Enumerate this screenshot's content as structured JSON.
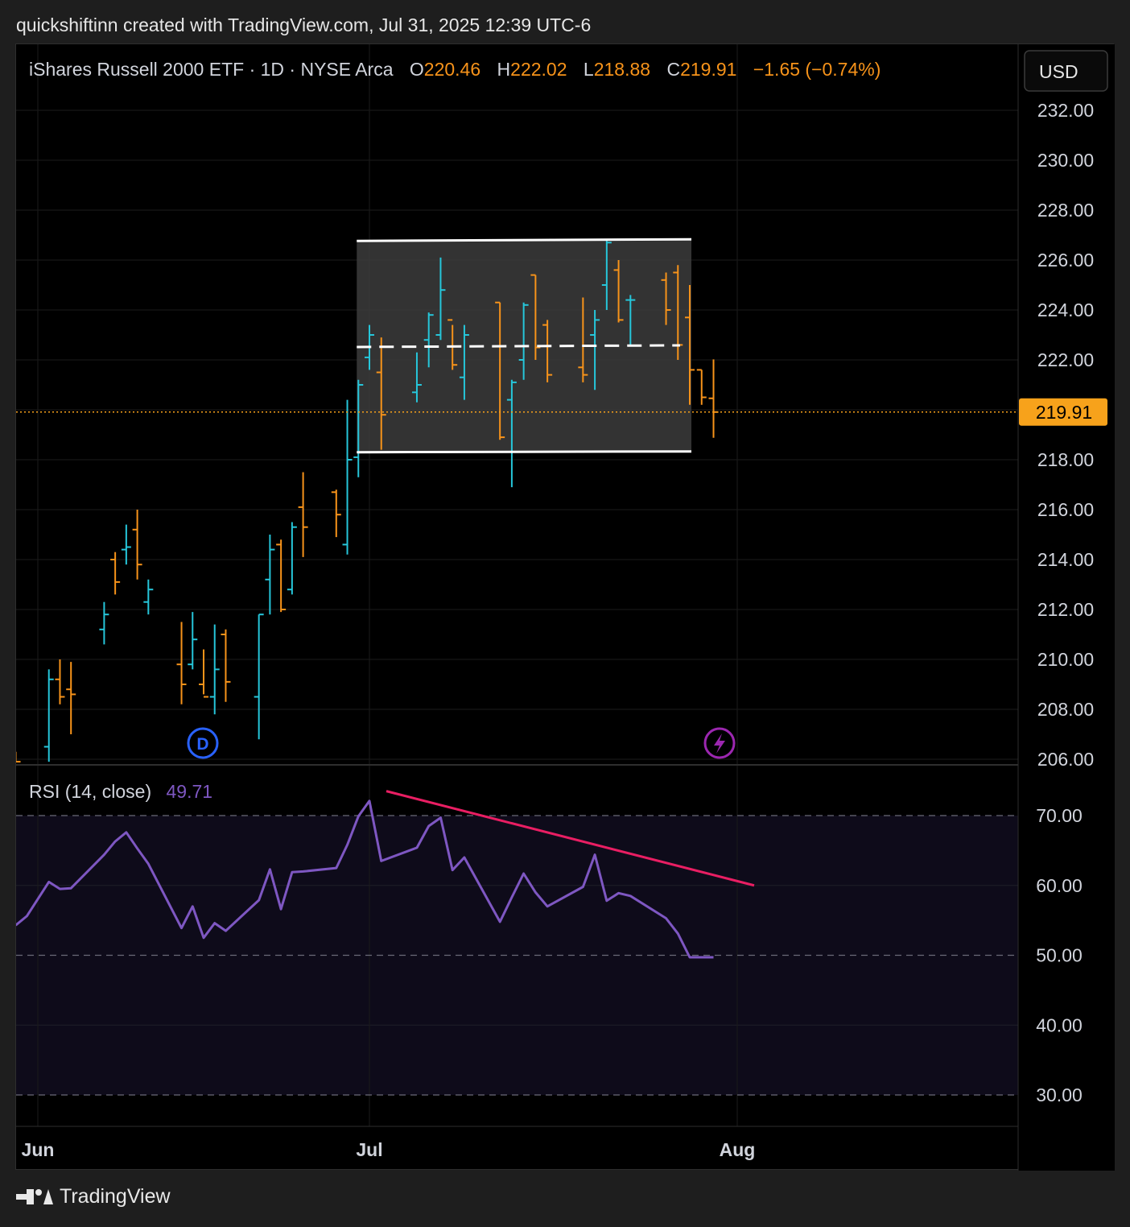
{
  "attribution": "quickshiftinn created with TradingView.com, Jul 31, 2025 12:39 UTC-6",
  "brand": "TradingView",
  "currency_button": "USD",
  "legend": {
    "symbol": "iShares Russell 2000 ETF · 1D · NYSE Arca",
    "open_label": "O",
    "open": "220.46",
    "high_label": "H",
    "high": "222.02",
    "low_label": "L",
    "low": "218.88",
    "close_label": "C",
    "close": "219.91",
    "change": "−1.65 (−0.74%)"
  },
  "rsi_legend": {
    "label": "RSI (14, close)",
    "value": "49.71"
  },
  "last_price_label": "219.91",
  "markers": {
    "dividend": "D",
    "earnings_icon": "lightning-icon"
  },
  "colors": {
    "up": "#26c6da",
    "down": "#f7931a",
    "rsi_line": "#7e57c2",
    "trendline": "#e91e63",
    "channel_fill": "#3c3c3c",
    "last_price": "#f7a21b",
    "dividend": "#2962ff",
    "earnings": "#9c27b0"
  },
  "chart_data": [
    {
      "type": "ohlc",
      "x_axis_labels": [
        {
          "label": "Jun",
          "day": 1
        },
        {
          "label": "Jul",
          "day": 31
        },
        {
          "label": "Aug",
          "day": 62
        }
      ],
      "y_ticks": [
        "206.00",
        "208.00",
        "210.00",
        "212.00",
        "214.00",
        "216.00",
        "218.00",
        "220.00",
        "222.00",
        "224.00",
        "226.00",
        "228.00",
        "230.00",
        "232.00"
      ],
      "ylim": [
        205.9,
        232.2
      ],
      "xlim": [
        -1,
        90
      ],
      "bars": [
        {
          "day": -1,
          "open": 206.0,
          "high": 206.3,
          "low": 205.9,
          "close": 205.9
        },
        {
          "day": 2,
          "open": 206.5,
          "high": 209.6,
          "low": 205.9,
          "close": 209.2
        },
        {
          "day": 3,
          "open": 209.2,
          "high": 210.0,
          "low": 208.2,
          "close": 208.5
        },
        {
          "day": 4,
          "open": 208.8,
          "high": 209.9,
          "low": 207.0,
          "close": 208.6
        },
        {
          "day": 7,
          "open": 211.2,
          "high": 212.3,
          "low": 210.6,
          "close": 211.8
        },
        {
          "day": 8,
          "open": 214.0,
          "high": 214.3,
          "low": 212.6,
          "close": 213.1
        },
        {
          "day": 9,
          "open": 214.4,
          "high": 215.4,
          "low": 213.8,
          "close": 214.5
        },
        {
          "day": 10,
          "open": 215.2,
          "high": 216.0,
          "low": 213.2,
          "close": 213.8
        },
        {
          "day": 11,
          "open": 212.3,
          "high": 213.2,
          "low": 211.8,
          "close": 212.8
        },
        {
          "day": 14,
          "open": 209.8,
          "high": 211.5,
          "low": 208.2,
          "close": 209.0
        },
        {
          "day": 15,
          "open": 209.8,
          "high": 211.9,
          "low": 209.6,
          "close": 210.8
        },
        {
          "day": 16,
          "open": 209.0,
          "high": 210.4,
          "low": 208.6,
          "close": 208.5
        },
        {
          "day": 17,
          "open": 208.5,
          "high": 211.4,
          "low": 207.8,
          "close": 209.6
        },
        {
          "day": 18,
          "open": 211.0,
          "high": 211.2,
          "low": 208.3,
          "close": 209.1
        },
        {
          "day": 21,
          "open": 208.5,
          "high": 211.8,
          "low": 206.8,
          "close": 211.8
        },
        {
          "day": 22,
          "open": 213.2,
          "high": 215.0,
          "low": 211.8,
          "close": 214.4
        },
        {
          "day": 23,
          "open": 214.6,
          "high": 214.8,
          "low": 211.9,
          "close": 212.0
        },
        {
          "day": 24,
          "open": 212.8,
          "high": 215.5,
          "low": 212.6,
          "close": 215.3
        },
        {
          "day": 25,
          "open": 216.1,
          "high": 217.5,
          "low": 214.1,
          "close": 215.3
        },
        {
          "day": 28,
          "open": 216.7,
          "high": 216.8,
          "low": 214.9,
          "close": 215.8
        },
        {
          "day": 29,
          "open": 214.6,
          "high": 220.4,
          "low": 214.2,
          "close": 218.0
        },
        {
          "day": 30,
          "open": 218.1,
          "high": 221.2,
          "low": 217.3,
          "close": 221.0
        },
        {
          "day": 31,
          "open": 222.1,
          "high": 223.4,
          "low": 221.6,
          "close": 223.0
        },
        {
          "day": 32,
          "open": 221.5,
          "high": 222.9,
          "low": 218.4,
          "close": 219.8
        },
        {
          "day": 35,
          "open": 220.7,
          "high": 222.3,
          "low": 220.3,
          "close": 221.0
        },
        {
          "day": 36,
          "open": 222.8,
          "high": 223.9,
          "low": 221.7,
          "close": 223.8
        },
        {
          "day": 37,
          "open": 223.0,
          "high": 226.1,
          "low": 222.8,
          "close": 224.8
        },
        {
          "day": 38,
          "open": 223.6,
          "high": 223.4,
          "low": 221.6,
          "close": 221.8
        },
        {
          "day": 39,
          "open": 221.3,
          "high": 223.4,
          "low": 220.4,
          "close": 223.0
        },
        {
          "day": 42,
          "open": 224.3,
          "high": 224.3,
          "low": 218.8,
          "close": 218.9
        },
        {
          "day": 43,
          "open": 220.4,
          "high": 221.2,
          "low": 216.9,
          "close": 221.1
        },
        {
          "day": 44,
          "open": 222.0,
          "high": 224.3,
          "low": 221.2,
          "close": 224.2
        },
        {
          "day": 45,
          "open": 225.4,
          "high": 225.4,
          "low": 222.0,
          "close": 222.5
        },
        {
          "day": 46,
          "open": 223.4,
          "high": 223.6,
          "low": 221.1,
          "close": 221.4
        },
        {
          "day": 49,
          "open": 221.7,
          "high": 224.5,
          "low": 221.1,
          "close": 221.4
        },
        {
          "day": 50,
          "open": 223.0,
          "high": 224.0,
          "low": 220.8,
          "close": 223.6
        },
        {
          "day": 51,
          "open": 225.0,
          "high": 226.8,
          "low": 224.0,
          "close": 226.7
        },
        {
          "day": 52,
          "open": 225.6,
          "high": 226.0,
          "low": 223.5,
          "close": 223.6
        },
        {
          "day": 53,
          "open": 224.4,
          "high": 224.6,
          "low": 222.6,
          "close": 224.4
        },
        {
          "day": 56,
          "open": 225.2,
          "high": 225.5,
          "low": 223.4,
          "close": 224.0
        },
        {
          "day": 57,
          "open": 225.5,
          "high": 225.8,
          "low": 222.0,
          "close": 222.6
        },
        {
          "day": 58,
          "open": 223.7,
          "high": 225.0,
          "low": 220.2,
          "close": 221.6
        },
        {
          "day": 59,
          "open": 221.6,
          "high": 221.6,
          "low": 220.2,
          "close": 220.5
        },
        {
          "day": 60,
          "open": 220.46,
          "high": 222.02,
          "low": 218.88,
          "close": 219.91
        }
      ],
      "channel": {
        "x_start": 30,
        "x_end": 58,
        "top": 226.8,
        "bottom": 218.3,
        "mid": 222.55
      },
      "last_price": 219.91
    },
    {
      "type": "line",
      "name": "RSI (14, close)",
      "y_ticks": [
        "30.00",
        "40.00",
        "50.00",
        "60.00",
        "70.00"
      ],
      "ylim": [
        27.8,
        80.0
      ],
      "levels": [
        30,
        50,
        70
      ],
      "x": [
        -1,
        0,
        1,
        2,
        3,
        4,
        5,
        6,
        7,
        8,
        9,
        10,
        11,
        12,
        13,
        14,
        15,
        16,
        17,
        18,
        19,
        20,
        21,
        22,
        23,
        24,
        25,
        26,
        27,
        28,
        29,
        30,
        31,
        32,
        33,
        34,
        35,
        36,
        37,
        38,
        39,
        40,
        41,
        42,
        43,
        44,
        45,
        46,
        47,
        48,
        49,
        50,
        51,
        52,
        53,
        54
      ],
      "values": [
        54.3,
        55.6,
        60.5,
        59.5,
        59.6,
        64.4,
        66.3,
        67.6,
        65.3,
        63.1,
        53.9,
        57.0,
        52.5,
        54.6,
        53.5,
        57.9,
        62.3,
        56.6,
        61.9,
        62.0,
        62.5,
        65.8,
        69.9,
        72.1,
        63.5,
        65.4,
        68.5,
        69.7,
        62.2,
        64.0,
        54.8,
        58.3,
        61.7,
        59.0,
        57.0,
        59.8,
        64.4,
        57.8,
        58.9,
        58.5,
        55.3,
        53.1,
        49.71,
        49.71,
        49.71,
        49.71,
        49.71,
        49.71,
        49.71,
        49.71,
        49.71,
        49.71,
        49.71,
        49.71,
        49.71,
        49.71
      ],
      "trendline": {
        "x1": 0,
        "y1": 0,
        "x2": 0,
        "y2": 0
      }
    }
  ]
}
